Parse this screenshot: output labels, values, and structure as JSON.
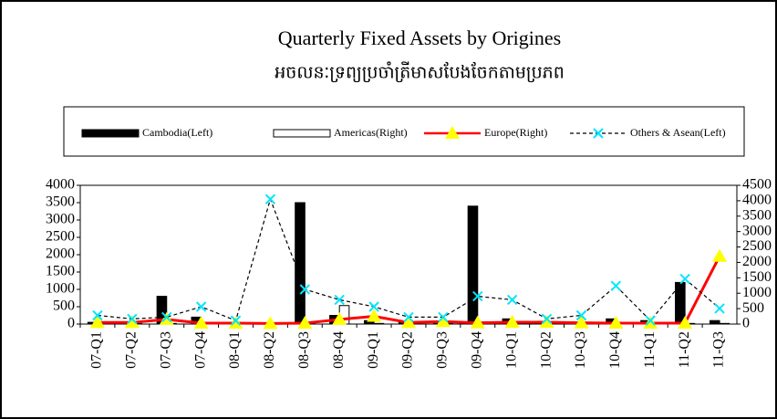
{
  "chart_data": {
    "type": "combo",
    "title": "Quarterly Fixed Assets by Origines",
    "subtitle": "អចលនៈទ្រព្យប្រចាំត្រីមាសបែងចែកតាមប្រភព",
    "categories": [
      "07-Q1",
      "07-Q2",
      "07-Q3",
      "07-Q4",
      "08-Q1",
      "08-Q2",
      "08-Q3",
      "08-Q4",
      "09-Q1",
      "09-Q2",
      "09-Q3",
      "09-Q4",
      "10-Q1",
      "10-Q2",
      "10-Q3",
      "10-Q4",
      "11-Q1",
      "11-Q2",
      "11-Q3"
    ],
    "ylim": [
      0,
      4000
    ],
    "yticks": [
      0,
      500,
      1000,
      1500,
      2000,
      2500,
      3000,
      3500,
      4000
    ],
    "y2lim": [
      0,
      4500
    ],
    "y2ticks": [
      0,
      500,
      1000,
      1500,
      2000,
      2500,
      3000,
      3500,
      4000,
      4500
    ],
    "series": [
      {
        "name": "Cambodia(Left)",
        "type": "bar",
        "color": "#000000",
        "values": [
          50,
          60,
          800,
          200,
          50,
          30,
          3500,
          250,
          100,
          50,
          80,
          3400,
          150,
          80,
          50,
          150,
          100,
          1200,
          100
        ]
      },
      {
        "name": "Americas(Right)",
        "type": "bar",
        "color": "#ffffff",
        "axis": "y2",
        "values": [
          20,
          20,
          20,
          20,
          20,
          20,
          20,
          600,
          20,
          20,
          20,
          20,
          20,
          20,
          20,
          20,
          20,
          20,
          20
        ]
      },
      {
        "name": "Europe(Right)",
        "type": "line",
        "color": "#ff0000",
        "marker": "triangle",
        "marker_color": "#ffff00",
        "axis": "y2",
        "values": [
          50,
          50,
          150,
          30,
          30,
          20,
          30,
          150,
          250,
          50,
          80,
          40,
          60,
          60,
          40,
          30,
          30,
          30,
          2200
        ]
      },
      {
        "name": "Others & Asean(Left)",
        "type": "line",
        "color": "#000000",
        "dashed": true,
        "marker": "x",
        "marker_color": "#00e5ff",
        "values": [
          250,
          150,
          200,
          500,
          100,
          3600,
          1000,
          700,
          500,
          200,
          200,
          800,
          700,
          150,
          250,
          1100,
          100,
          1300,
          450
        ]
      }
    ]
  }
}
